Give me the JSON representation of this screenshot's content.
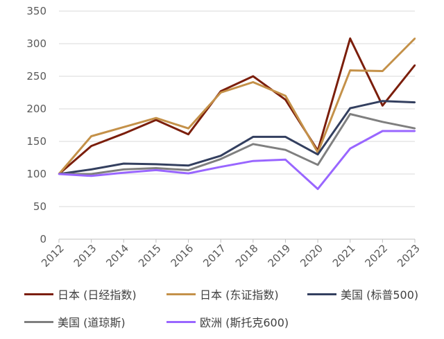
{
  "chart_data": {
    "type": "line",
    "title": "",
    "xlabel": "",
    "ylabel": "",
    "ylim": [
      0,
      350
    ],
    "yticks": [
      0,
      50,
      100,
      150,
      200,
      250,
      300,
      350
    ],
    "grid": "horizontal",
    "legend_position": "bottom",
    "x": [
      "2012",
      "2013",
      "2014",
      "2015",
      "2016",
      "2017",
      "2018",
      "2019",
      "2020",
      "2021",
      "2022",
      "2023"
    ],
    "series": [
      {
        "name": "日本 (日经指数)",
        "color": "#7b1e0b",
        "values": [
          100,
          143,
          162,
          183,
          161,
          227,
          250,
          214,
          136,
          308,
          205,
          267
        ]
      },
      {
        "name": "日本 (东证指数)",
        "color": "#c49149",
        "values": [
          100,
          158,
          172,
          186,
          170,
          225,
          241,
          220,
          133,
          259,
          258,
          308
        ]
      },
      {
        "name": "美国 (标普500)",
        "color": "#333f5f",
        "values": [
          100,
          107,
          116,
          115,
          113,
          128,
          157,
          157,
          130,
          201,
          212,
          210
        ]
      },
      {
        "name": "美国 (道琼斯)",
        "color": "#7f7f7f",
        "values": [
          100,
          100,
          107,
          109,
          106,
          123,
          146,
          137,
          114,
          192,
          180,
          170
        ]
      },
      {
        "name": "欧洲 (斯托克600)",
        "color": "#9966ff",
        "values": [
          100,
          97,
          102,
          106,
          101,
          111,
          120,
          122,
          77,
          139,
          166,
          166
        ]
      }
    ]
  }
}
